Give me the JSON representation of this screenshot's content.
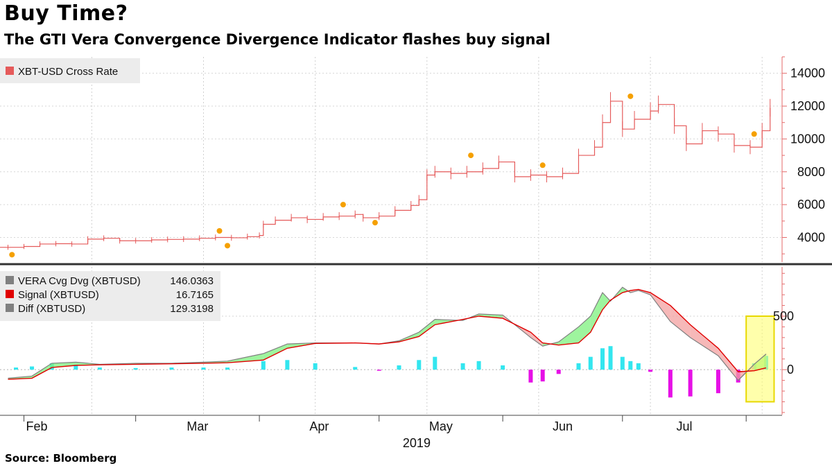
{
  "header": {
    "title": "Buy Time?",
    "subtitle": "The GTI Vera Convergence Divergence Indicator flashes buy signal"
  },
  "footer": {
    "source": "Bloomberg",
    "source_label": "Source:"
  },
  "chart_data": [
    {
      "type": "line",
      "panel": "price",
      "series": [
        {
          "name": "XBT-USD Cross Rate",
          "color": "#e55a5a",
          "x": [
            "2019-01-28",
            "2019-02-01",
            "2019-02-05",
            "2019-02-09",
            "2019-02-13",
            "2019-02-17",
            "2019-02-21",
            "2019-02-25",
            "2019-03-01",
            "2019-03-05",
            "2019-03-09",
            "2019-03-13",
            "2019-03-17",
            "2019-03-21",
            "2019-03-25",
            "2019-03-29",
            "2019-04-01",
            "2019-04-02",
            "2019-04-05",
            "2019-04-09",
            "2019-04-13",
            "2019-04-17",
            "2019-04-21",
            "2019-04-25",
            "2019-04-27",
            "2019-05-01",
            "2019-05-05",
            "2019-05-09",
            "2019-05-11",
            "2019-05-13",
            "2019-05-15",
            "2019-05-19",
            "2019-05-23",
            "2019-05-27",
            "2019-05-31",
            "2019-06-04",
            "2019-06-08",
            "2019-06-12",
            "2019-06-16",
            "2019-06-20",
            "2019-06-24",
            "2019-06-26",
            "2019-06-28",
            "2019-07-01",
            "2019-07-04",
            "2019-07-08",
            "2019-07-10",
            "2019-07-14",
            "2019-07-17",
            "2019-07-21",
            "2019-07-25",
            "2019-07-29",
            "2019-08-02",
            "2019-08-05",
            "2019-08-07"
          ],
          "values": [
            3400,
            3450,
            3600,
            3620,
            3600,
            3900,
            3950,
            3800,
            3800,
            3850,
            3880,
            3900,
            3950,
            4000,
            3980,
            4050,
            4120,
            4800,
            5050,
            5200,
            5100,
            5250,
            5300,
            5400,
            5200,
            5300,
            5650,
            5950,
            6300,
            7800,
            8000,
            7900,
            8000,
            8200,
            8600,
            7700,
            7800,
            7700,
            7900,
            9000,
            9500,
            11000,
            12300,
            10600,
            11200,
            11700,
            12100,
            10800,
            9700,
            10500,
            10300,
            9600,
            9500,
            10500,
            11900
          ]
        }
      ],
      "annotations": {
        "color": "#f5a000",
        "points": [
          {
            "x": "2019-01-29",
            "y": 2950
          },
          {
            "x": "2019-03-22",
            "y": 4400
          },
          {
            "x": "2019-03-24",
            "y": 3500
          },
          {
            "x": "2019-04-22",
            "y": 6000
          },
          {
            "x": "2019-04-30",
            "y": 4900
          },
          {
            "x": "2019-05-24",
            "y": 9000
          },
          {
            "x": "2019-06-11",
            "y": 8400
          },
          {
            "x": "2019-07-03",
            "y": 12600
          },
          {
            "x": "2019-08-03",
            "y": 10300
          }
        ]
      },
      "ylim": [
        2500,
        15000
      ],
      "yticks": [
        4000,
        6000,
        8000,
        10000,
        12000,
        14000
      ],
      "grid": true,
      "legend": "top-left"
    },
    {
      "type": "area",
      "panel": "indicator",
      "series": [
        {
          "name": "VERA Cvg Dvg (XBTUSD)",
          "last_value": "146.0363",
          "color": "#808080",
          "x": [
            "2019-01-28",
            "2019-02-03",
            "2019-02-08",
            "2019-02-14",
            "2019-02-20",
            "2019-03-01",
            "2019-03-10",
            "2019-03-18",
            "2019-03-24",
            "2019-04-02",
            "2019-04-08",
            "2019-04-15",
            "2019-04-25",
            "2019-05-01",
            "2019-05-06",
            "2019-05-11",
            "2019-05-15",
            "2019-05-22",
            "2019-05-26",
            "2019-06-01",
            "2019-06-08",
            "2019-06-11",
            "2019-06-15",
            "2019-06-20",
            "2019-06-23",
            "2019-06-26",
            "2019-06-28",
            "2019-07-01",
            "2019-07-03",
            "2019-07-05",
            "2019-07-08",
            "2019-07-13",
            "2019-07-18",
            "2019-07-25",
            "2019-07-30",
            "2019-08-03",
            "2019-08-06"
          ],
          "values": [
            -80,
            -60,
            60,
            70,
            50,
            60,
            60,
            70,
            80,
            150,
            240,
            250,
            250,
            240,
            270,
            350,
            470,
            460,
            520,
            510,
            300,
            220,
            260,
            400,
            500,
            720,
            640,
            770,
            720,
            740,
            700,
            450,
            300,
            130,
            -100,
            50,
            146
          ]
        },
        {
          "name": "Signal (XBTUSD)",
          "last_value": "16.7165",
          "color": "#e00000",
          "x": [
            "2019-01-28",
            "2019-02-03",
            "2019-02-08",
            "2019-02-14",
            "2019-02-20",
            "2019-03-01",
            "2019-03-10",
            "2019-03-18",
            "2019-03-24",
            "2019-04-02",
            "2019-04-08",
            "2019-04-15",
            "2019-04-25",
            "2019-05-01",
            "2019-05-06",
            "2019-05-11",
            "2019-05-15",
            "2019-05-22",
            "2019-05-26",
            "2019-06-01",
            "2019-06-08",
            "2019-06-11",
            "2019-06-15",
            "2019-06-20",
            "2019-06-23",
            "2019-06-26",
            "2019-06-28",
            "2019-07-01",
            "2019-07-03",
            "2019-07-05",
            "2019-07-08",
            "2019-07-13",
            "2019-07-18",
            "2019-07-25",
            "2019-07-30",
            "2019-08-03",
            "2019-08-06"
          ],
          "values": [
            -90,
            -80,
            20,
            40,
            45,
            50,
            55,
            60,
            65,
            90,
            200,
            245,
            250,
            240,
            260,
            310,
            420,
            470,
            500,
            480,
            350,
            250,
            230,
            250,
            350,
            560,
            650,
            720,
            740,
            750,
            720,
            600,
            420,
            200,
            -20,
            -10,
            17
          ]
        },
        {
          "name": "Diff (XBTUSD)",
          "last_value": "129.3198",
          "color": "#808080",
          "pos_color": "#33e6ef",
          "neg_color": "#e610e6",
          "x": [
            "2019-01-30",
            "2019-02-03",
            "2019-02-08",
            "2019-02-14",
            "2019-02-20",
            "2019-03-01",
            "2019-03-10",
            "2019-03-18",
            "2019-03-24",
            "2019-04-02",
            "2019-04-08",
            "2019-04-15",
            "2019-04-25",
            "2019-05-01",
            "2019-05-06",
            "2019-05-11",
            "2019-05-15",
            "2019-05-22",
            "2019-05-26",
            "2019-06-01",
            "2019-06-08",
            "2019-06-11",
            "2019-06-15",
            "2019-06-20",
            "2019-06-23",
            "2019-06-26",
            "2019-06-28",
            "2019-07-01",
            "2019-07-03",
            "2019-07-05",
            "2019-07-08",
            "2019-07-13",
            "2019-07-18",
            "2019-07-25",
            "2019-07-30",
            "2019-08-03",
            "2019-08-06"
          ],
          "values": [
            20,
            30,
            60,
            45,
            20,
            15,
            20,
            20,
            20,
            80,
            90,
            60,
            25,
            -10,
            40,
            90,
            120,
            60,
            80,
            40,
            -120,
            -110,
            -40,
            60,
            120,
            200,
            220,
            120,
            80,
            60,
            -20,
            -260,
            -250,
            -220,
            -120,
            60,
            129
          ]
        }
      ],
      "highlight": {
        "x_start": "2019-08-01",
        "x_end": "2019-08-08",
        "y_start": -300,
        "y_end": 500,
        "color": "#ffff66"
      },
      "ylim": [
        -420,
        960
      ],
      "yticks": [
        0,
        500
      ],
      "grid": true,
      "legend": "top-left"
    }
  ],
  "x_axis": {
    "months": [
      "Feb",
      "Mar",
      "Apr",
      "May",
      "Jun",
      "Jul"
    ],
    "year": "2019"
  }
}
